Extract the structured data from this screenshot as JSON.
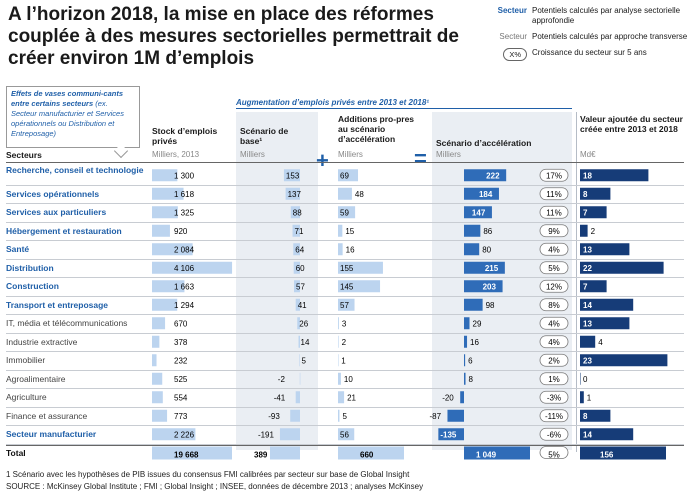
{
  "title": "A l’horizon 2018, la mise en place des réformes couplée à des mesures sectorielles permettrait de créer environ 1M d’emplois",
  "legend": {
    "item1_key": "Secteur",
    "item1_text": "Potentiels calculés par analyse sectorielle approfondie",
    "item2_key": "Secteur",
    "item2_text": "Potentiels calculés par approche transverse",
    "item3_key": "X%",
    "item3_text": "Croissance du secteur sur 5 ans"
  },
  "callout": {
    "text_bold": "Effets de vases communi-cants entre certains secteurs",
    "text_rest": "(ex. Secteur manufacturier et Services opérationnels ou Distribution et Entreposage)"
  },
  "banner": "Augmentation d’emplois privés entre 2013 et 2018¹",
  "headers": {
    "sectors": "Secteurs",
    "stock": "Stock d’emplois privés",
    "stock_unit": "Milliers, 2013",
    "base": "Scénario de base¹",
    "base_unit": "Milliers",
    "add": "Additions pro-pres au scénario d’accélération",
    "add_unit": "Milliers",
    "accel": "Scénario d’accélération",
    "accel_unit": "Milliers",
    "va": "Valeur ajoutée du secteur créée entre 2013 et 2018",
    "va_unit": "Md€"
  },
  "operators": {
    "plus": "+",
    "equals": "="
  },
  "chart_data": {
    "type": "bar",
    "title": "A l’horizon 2018, la mise en place des réformes couplée à des mesures sectorielles permettrait de créer environ 1M d’emplois",
    "categories": [
      "Recherche, conseil et technologie",
      "Services opérationnels",
      "Services aux particuliers",
      "Hébergement et restauration",
      "Santé",
      "Distribution",
      "Construction",
      "Transport et entreposage",
      "IT, média et télécommunications",
      "Industrie extractive",
      "Immobilier",
      "Agroalimentaire",
      "Agriculture",
      "Finance et assurance",
      "Secteur manufacturier"
    ],
    "category_types": [
      "sec",
      "sec",
      "sec",
      "sec",
      "sec",
      "sec",
      "sec",
      "sec",
      "trans",
      "trans",
      "trans",
      "trans",
      "trans",
      "trans",
      "sec"
    ],
    "series": [
      {
        "name": "Stock d’emplois privés",
        "values": [
          1300,
          1618,
          1325,
          920,
          2084,
          4106,
          1663,
          1294,
          670,
          378,
          232,
          525,
          554,
          773,
          2226
        ],
        "labels": [
          "1 300",
          "1 618",
          "1 325",
          "920",
          "2 084",
          "4 106",
          "1 663",
          "1 294",
          "670",
          "378",
          "232",
          "525",
          "554",
          "773",
          "2 226"
        ]
      },
      {
        "name": "Scénario de base",
        "values": [
          153,
          137,
          88,
          71,
          64,
          60,
          57,
          41,
          26,
          14,
          5,
          -2,
          -41,
          -93,
          -191
        ]
      },
      {
        "name": "Additions propres au scénario d’accélération",
        "values": [
          69,
          48,
          59,
          15,
          16,
          155,
          145,
          57,
          3,
          2,
          1,
          10,
          21,
          5,
          56
        ]
      },
      {
        "name": "Scénario d’accélération",
        "values": [
          222,
          184,
          147,
          86,
          80,
          215,
          203,
          98,
          29,
          16,
          6,
          8,
          -20,
          -87,
          -135
        ]
      },
      {
        "name": "Croissance du secteur sur 5 ans",
        "values": [
          "17%",
          "11%",
          "11%",
          "9%",
          "4%",
          "5%",
          "12%",
          "8%",
          "4%",
          "4%",
          "2%",
          "1%",
          "-3%",
          "-11%",
          "-6%"
        ]
      },
      {
        "name": "Valeur ajoutée du secteur créée entre 2013 et 2018",
        "values": [
          18,
          8,
          7,
          2,
          13,
          22,
          7,
          14,
          13,
          4,
          23,
          0,
          1,
          8,
          14
        ]
      }
    ],
    "total": {
      "label": "Total",
      "stock": "19 668",
      "base": "389",
      "add": "660",
      "accel": "1 049",
      "growth": "5%",
      "va": "156"
    }
  },
  "footnotes": {
    "note1": "1 Scénario avec les hypothèses de PIB issues du consensus FMI calibrées par secteur sur base de Global Insight",
    "source": "SOURCE : McKinsey Global Institute ; FMI ; Global Insight ; INSEE, données de décembre 2013 ; analyses McKinsey"
  },
  "colors": {
    "accent": "#1f5fa8",
    "light_bar": "#bcd4ef",
    "mid_bar": "#2f6cb8",
    "dark_bar": "#163c78",
    "shade": "#eaeef3"
  }
}
